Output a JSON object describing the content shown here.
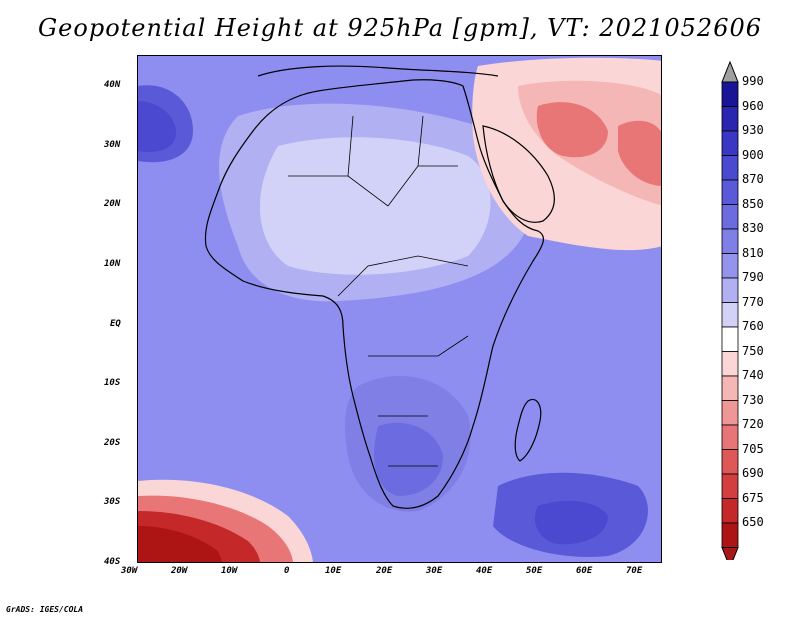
{
  "title": "Geopotential Height at 925hPa [gpm], VT: 2021052606",
  "credit": "GrADS: IGES/COLA",
  "y_axis_labels": [
    "40N",
    "30N",
    "20N",
    "10N",
    "EQ",
    "10S",
    "20S",
    "30S",
    "40S"
  ],
  "x_axis_labels": [
    "30W",
    "20W",
    "10W",
    "0",
    "10E",
    "20E",
    "30E",
    "40E",
    "50E",
    "60E",
    "70E"
  ],
  "colorbar": {
    "levels": [
      "990",
      "960",
      "930",
      "900",
      "870",
      "850",
      "830",
      "810",
      "790",
      "770",
      "760",
      "750",
      "740",
      "730",
      "720",
      "705",
      "690",
      "675",
      "650"
    ],
    "colors": [
      "#1a1496",
      "#2a26b0",
      "#3a37c4",
      "#4a49d0",
      "#5a5ad8",
      "#6c6ce0",
      "#7f7fe6",
      "#9494ec",
      "#b0b0f2",
      "#d2d2f8",
      "#ffffff",
      "#fbd6d6",
      "#f5b6b6",
      "#ef9696",
      "#e87676",
      "#df5858",
      "#d33e3e",
      "#c42828",
      "#ad1414"
    ],
    "top_arrow_color": "#a0a0a0",
    "bottom_arrow_color": "#a81818"
  },
  "map_colors": {
    "base": "#8e8ef0",
    "light": "#b0b0f2",
    "lighter": "#d2d2f8",
    "medium": "#7f7fe6",
    "dark": "#5a5ad8",
    "darker": "#4a49d0",
    "pink_light": "#fbd6d6",
    "pink": "#f5b6b6",
    "red": "#e87676",
    "red_dark": "#c42828",
    "red_darkest": "#ad1414",
    "coast": "#000000"
  }
}
